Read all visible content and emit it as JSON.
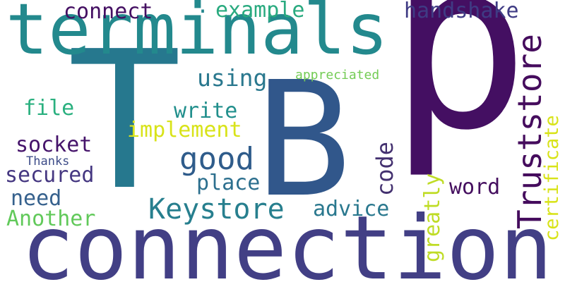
{
  "words": {
    "p": {
      "text": "p",
      "color": "#440f62",
      "orientation": "horizontal"
    },
    "T": {
      "text": "T",
      "color": "#26788e",
      "orientation": "horizontal"
    },
    "B": {
      "text": "B",
      "color": "#31578b",
      "orientation": "horizontal"
    },
    "connection": {
      "text": "connection",
      "color": "#423f85",
      "orientation": "horizontal"
    },
    "terminals": {
      "text": "terminals",
      "color": "#23898d",
      "orientation": "horizontal"
    },
    "Truststore": {
      "text": "Truststore",
      "color": "#450c5d",
      "orientation": "vertical"
    },
    "Keystore": {
      "text": "Keystore",
      "color": "#277f8e",
      "orientation": "horizontal"
    },
    "good": {
      "text": "good",
      "color": "#2f5c8b",
      "orientation": "horizontal"
    },
    "connect": {
      "text": "connect",
      "color": "#440f62",
      "orientation": "horizontal"
    },
    "example": {
      "text": "example",
      "color": "#29aa7f",
      "orientation": "horizontal"
    },
    "handshake": {
      "text": "handshake",
      "color": "#3f3b84",
      "orientation": "horizontal"
    },
    "using": {
      "text": "using",
      "color": "#2a788e",
      "orientation": "horizontal"
    },
    "appreciated": {
      "text": "appreciated",
      "color": "#74cc55",
      "orientation": "horizontal"
    },
    "file": {
      "text": "file",
      "color": "#2ab07f",
      "orientation": "horizontal"
    },
    "write": {
      "text": "write",
      "color": "#218f8c",
      "orientation": "horizontal"
    },
    "implement": {
      "text": "implement",
      "color": "#d8e319",
      "orientation": "horizontal"
    },
    "socket": {
      "text": "socket",
      "color": "#45136a",
      "orientation": "horizontal"
    },
    "Thanks": {
      "text": "Thanks",
      "color": "#3e4d89",
      "orientation": "horizontal"
    },
    "secured": {
      "text": "secured",
      "color": "#453781",
      "orientation": "horizontal"
    },
    "code": {
      "text": "code",
      "color": "#43306f",
      "orientation": "vertical"
    },
    "place": {
      "text": "place",
      "color": "#2c6f8e",
      "orientation": "horizontal"
    },
    "need": {
      "text": "need",
      "color": "#36618d",
      "orientation": "horizontal"
    },
    "word": {
      "text": "word",
      "color": "#450f5f",
      "orientation": "horizontal"
    },
    "advice": {
      "text": "advice",
      "color": "#2a788e",
      "orientation": "horizontal"
    },
    "Another": {
      "text": "Another",
      "color": "#61c95a",
      "orientation": "horizontal"
    },
    "greatly": {
      "text": "greatly",
      "color": "#bfdc26",
      "orientation": "vertical"
    },
    "certificate": {
      "text": "certificate",
      "color": "#d8e319",
      "orientation": "vertical"
    },
    "dot": {
      "text": ".",
      "color": "#24868e",
      "orientation": "horizontal"
    }
  }
}
